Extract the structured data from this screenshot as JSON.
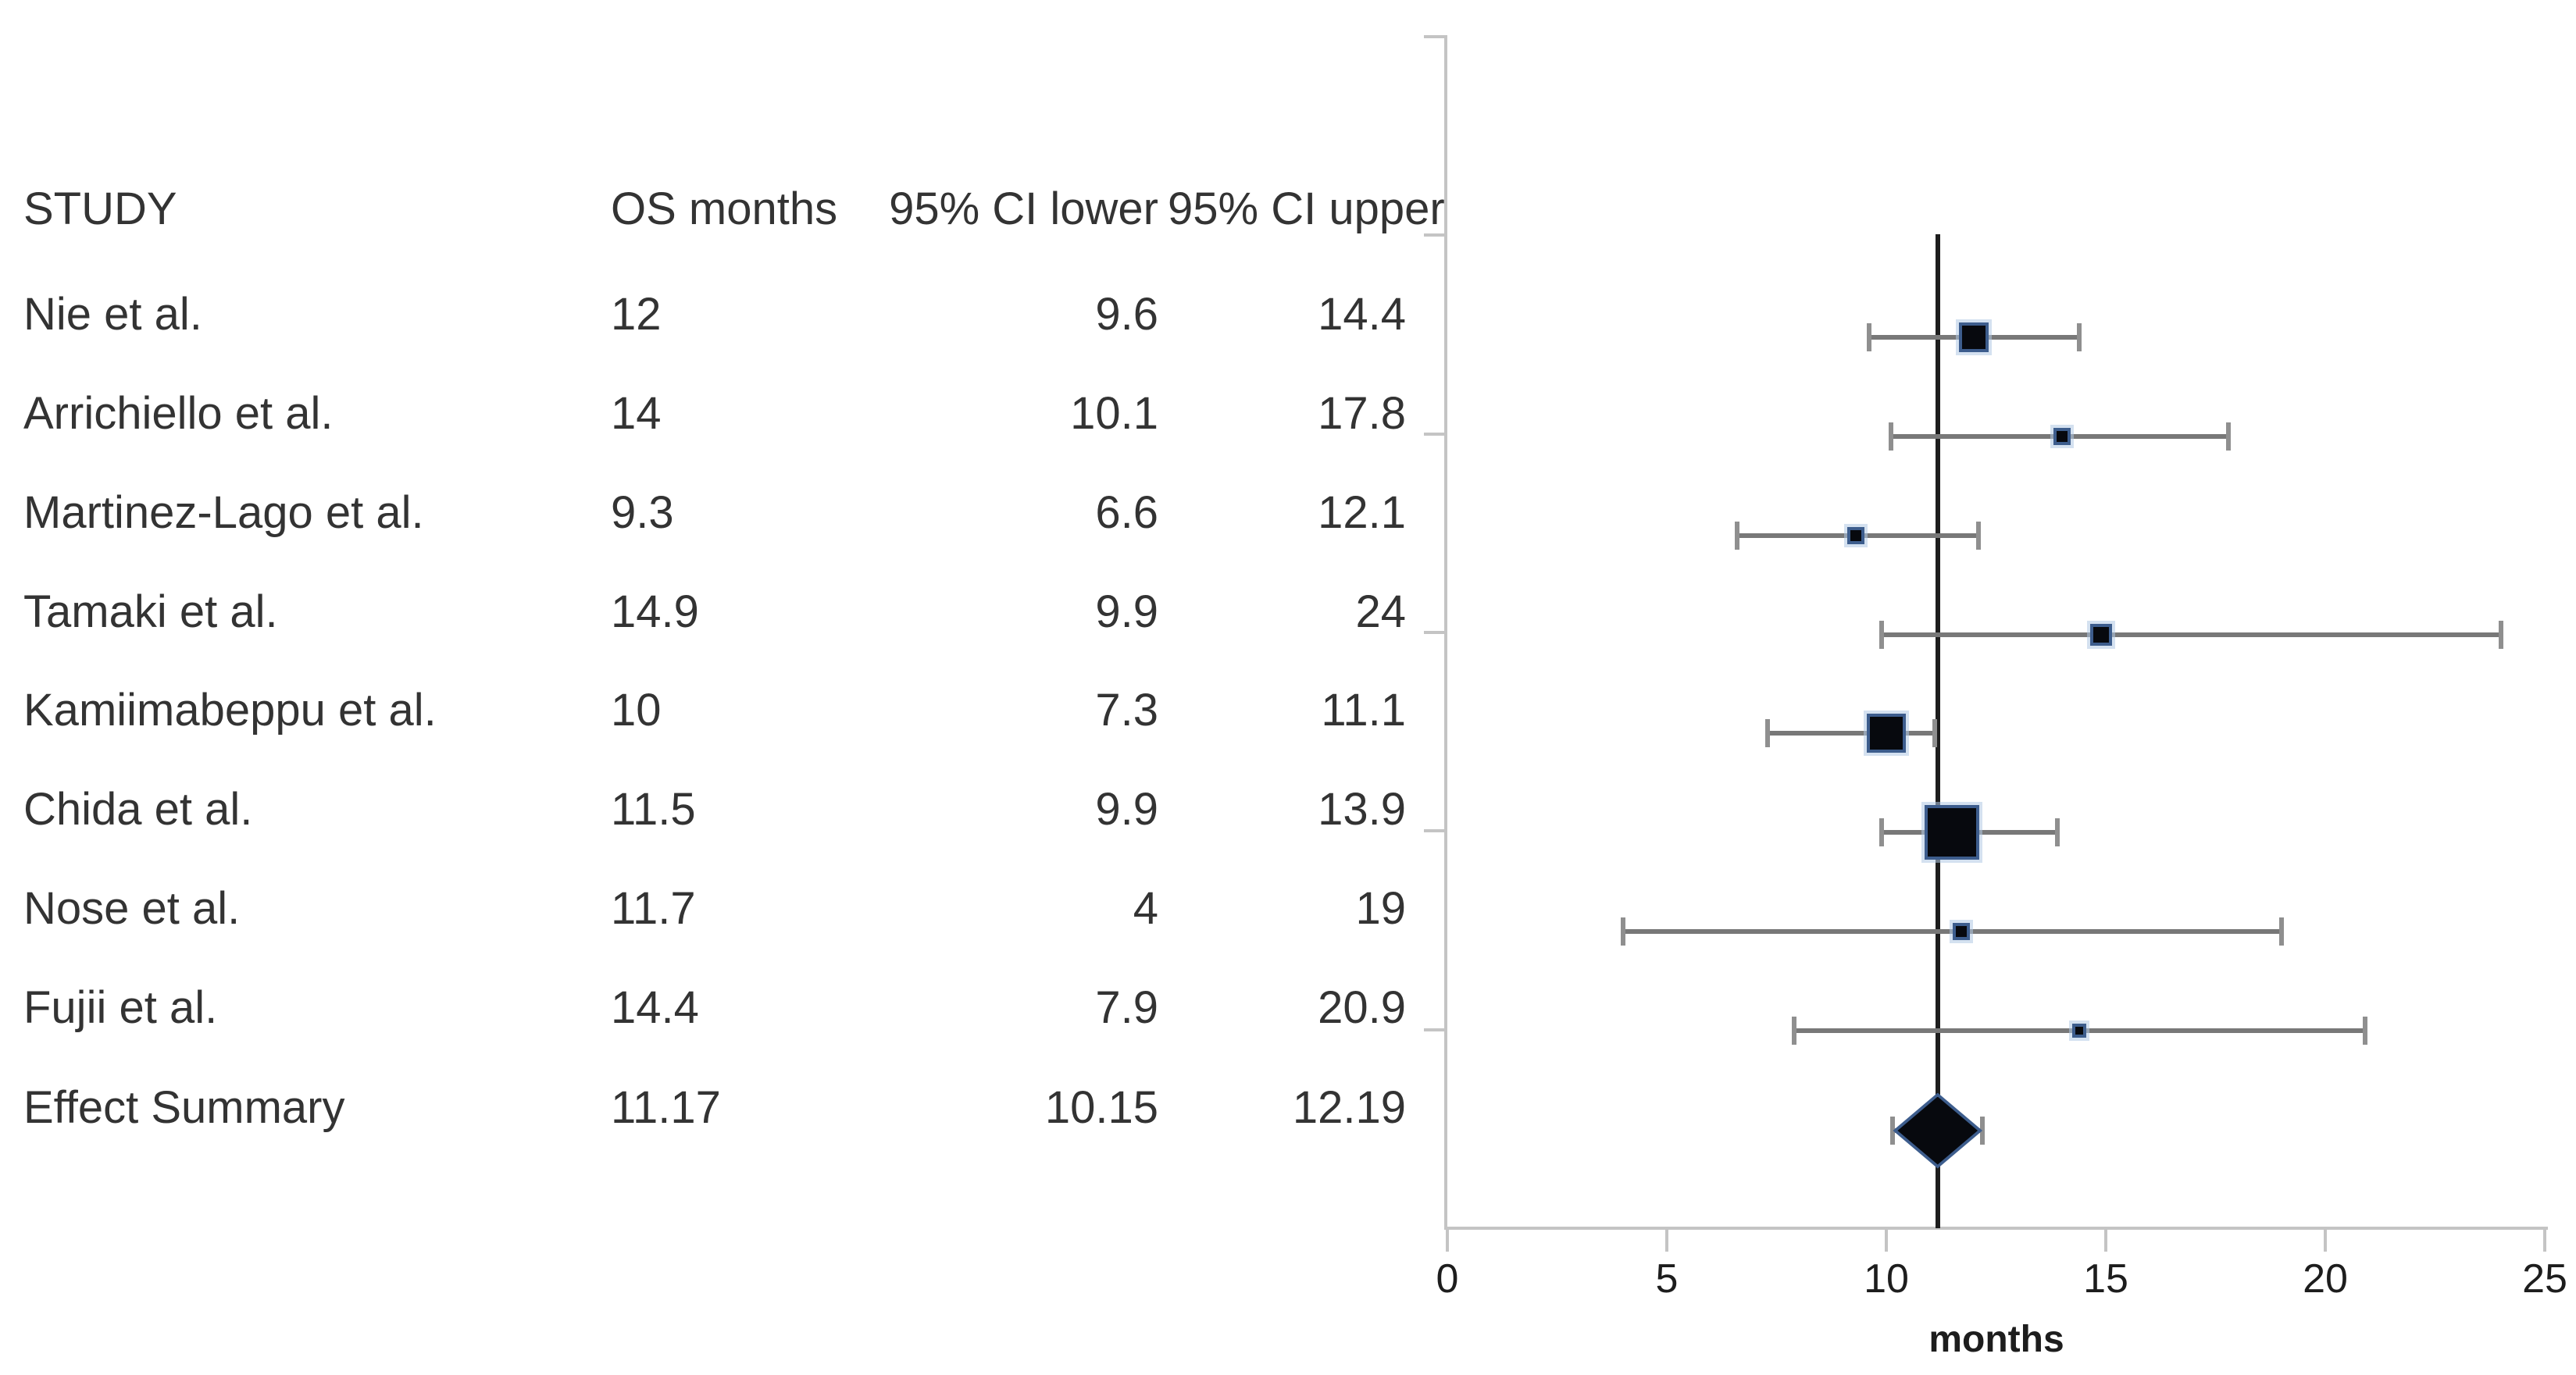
{
  "figure": {
    "type_label": "forest-plot",
    "background": "#ffffff"
  },
  "chart_data": {
    "type": "scatter",
    "subtype": "forest-plot",
    "columns": [
      "STUDY",
      "OS months",
      "95% CI lower",
      "95% CI upper"
    ],
    "xlabel": "months",
    "xlim": [
      0,
      25
    ],
    "x_ticks": [
      0,
      5,
      10,
      15,
      20,
      25
    ],
    "grid": "off",
    "reference_line_x": 11.17,
    "studies": [
      {
        "name": "Nie et al.",
        "os": 12,
        "lower": 9.6,
        "upper": 14.4,
        "marker_px": 38
      },
      {
        "name": "Arrichiello et al.",
        "os": 14,
        "lower": 10.1,
        "upper": 17.8,
        "marker_px": 22
      },
      {
        "name": "Martinez-Lago et al.",
        "os": 9.3,
        "lower": 6.6,
        "upper": 12.1,
        "marker_px": 22
      },
      {
        "name": "Tamaki et al.",
        "os": 14.9,
        "lower": 9.9,
        "upper": 24,
        "marker_px": 28
      },
      {
        "name": "Kamiimabeppu et al.",
        "os": 10,
        "lower": 7.3,
        "upper": 11.1,
        "marker_px": 50
      },
      {
        "name": "Chida et al.",
        "os": 11.5,
        "lower": 9.9,
        "upper": 13.9,
        "marker_px": 70
      },
      {
        "name": "Nose et al.",
        "os": 11.7,
        "lower": 4,
        "upper": 19,
        "marker_px": 22
      },
      {
        "name": "Fujii et al.",
        "os": 14.4,
        "lower": 7.9,
        "upper": 20.9,
        "marker_px": 18
      }
    ],
    "summary": {
      "name": "Effect Summary",
      "os": 11.17,
      "lower": 10.15,
      "upper": 12.19
    },
    "colors": {
      "text": "#333333",
      "axis": "#c4c4c4",
      "whisker": "#787878",
      "cap": "#8f8f8f",
      "reference_line": "#1d1d1d",
      "marker_fill": "#07090e",
      "marker_border": "#3d5d8d",
      "marker_halo": "rgba(176,200,228,0.55)",
      "tick_label": "#1d1d1d"
    }
  }
}
